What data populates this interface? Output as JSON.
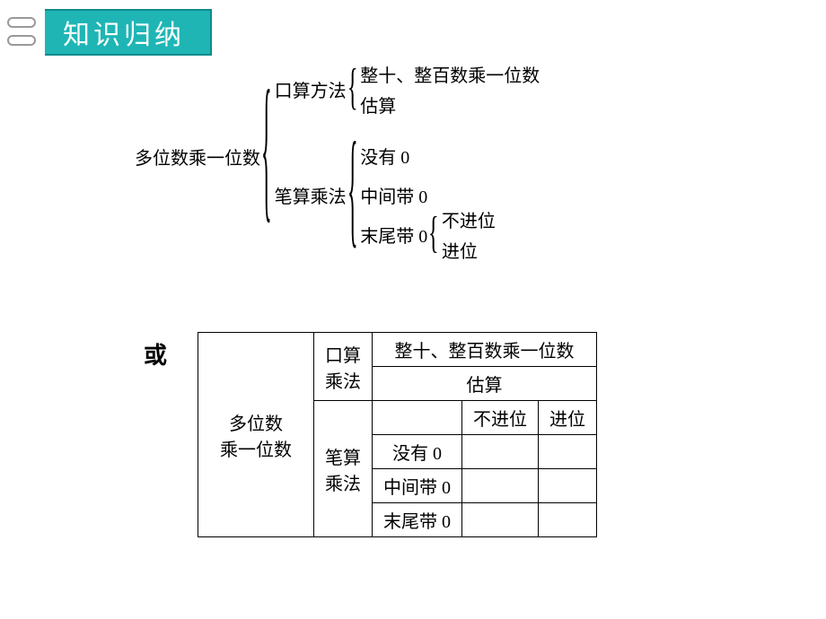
{
  "title": "知识归纳",
  "tree": {
    "root": "多位数乘一位数",
    "branch1": {
      "label": "口算方法",
      "items": [
        "整十、整百数乘一位数",
        "估算"
      ]
    },
    "branch2": {
      "label": "笔算乘法",
      "items": [
        "没有 0",
        "中间带 0"
      ],
      "sub": {
        "label": "末尾带 0",
        "items": [
          "不进位",
          "进位"
        ]
      }
    }
  },
  "or": "或",
  "table": {
    "rowspan_main": "多位数\n乘一位数",
    "mental_label": "口算\n乘法",
    "mental_r1": "整十、整百数乘一位数",
    "mental_r2": "估算",
    "written_label": "笔算\n乘法",
    "col_nocarry": "不进位",
    "col_carry": "进位",
    "r_no0": "没有 0",
    "r_mid0": "中间带 0",
    "r_end0": "末尾带 0"
  }
}
